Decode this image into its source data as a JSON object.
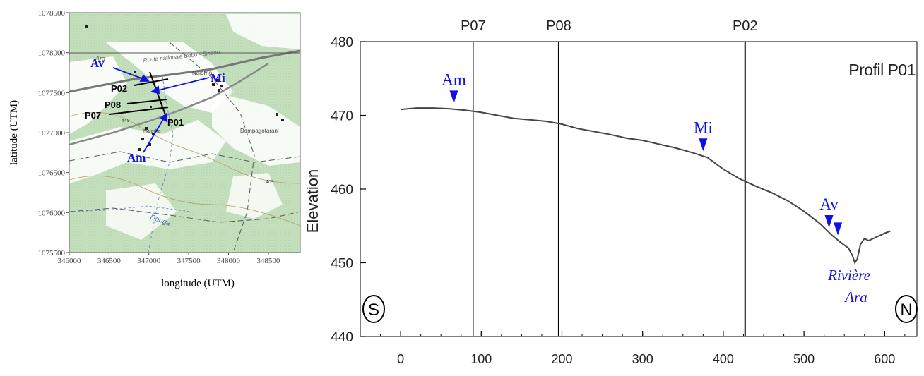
{
  "map": {
    "x_ticks": [
      346000,
      346500,
      347000,
      347500,
      348000,
      348500
    ],
    "y_ticks": [
      1075500,
      1076000,
      1076500,
      1077000,
      1077500,
      1078000,
      1078500
    ],
    "xlabel": "longitude (UTM)",
    "ylabel": "latitude (UTM)",
    "profile_labels": [
      "P02",
      "P08",
      "P07",
      "P01"
    ],
    "point_labels": [
      "Av",
      "Mi",
      "Am"
    ],
    "place_labels": [
      "Ara",
      "Route nationale Bobo - Sindou",
      "Nalorho",
      "Nalorho",
      "Dompagotarani",
      "Donga",
      "449",
      "409"
    ],
    "colors": {
      "forest": "#c9e3c2",
      "accent": "#1010e0"
    }
  },
  "chart_data": {
    "type": "line",
    "title": "Profil P01",
    "ylabel": "Elevation",
    "xlabel": "",
    "xlim": [
      -50,
      640
    ],
    "ylim": [
      440,
      480
    ],
    "x_ticks": [
      0,
      100,
      200,
      300,
      400,
      500,
      600
    ],
    "y_ticks": [
      440,
      450,
      460,
      470,
      480
    ],
    "grid": false,
    "series": [
      {
        "x": [
          0,
          20,
          40,
          60,
          80,
          100,
          120,
          140,
          160,
          180,
          200,
          220,
          240,
          260,
          280,
          300,
          320,
          340,
          360,
          380,
          400,
          420,
          440,
          460,
          480,
          500,
          520,
          535,
          545,
          550,
          555,
          560,
          563,
          566,
          570,
          575,
          580,
          590,
          600,
          607
        ],
        "y": [
          470.8,
          471.0,
          471.0,
          470.9,
          470.7,
          470.4,
          470.0,
          469.6,
          469.4,
          469.2,
          468.8,
          468.2,
          467.8,
          467.4,
          466.9,
          466.6,
          466.1,
          465.6,
          465.0,
          464.3,
          462.7,
          461.4,
          460.4,
          459.5,
          458.4,
          457.0,
          455.3,
          453.7,
          452.8,
          452.4,
          452.0,
          451.0,
          450.0,
          450.5,
          452.5,
          453.3,
          453.0,
          453.5,
          454.0,
          454.3
        ]
      }
    ],
    "vertical_lines": [
      {
        "label": "P07",
        "x": 90
      },
      {
        "label": "P08",
        "x": 196
      },
      {
        "label": "P02",
        "x": 427
      }
    ],
    "markers": [
      {
        "label": "Am",
        "x": 66,
        "y": 472.5
      },
      {
        "label": "Mi",
        "x": 375,
        "y": 466.0
      },
      {
        "label": "Av",
        "x": 531,
        "y": 455.6
      },
      {
        "label": "",
        "x": 542,
        "y": 454.6
      }
    ],
    "annotations": {
      "river_line1": "Rivière",
      "river_line2": "Ara",
      "south": "S",
      "north": "N"
    },
    "colors": {
      "line": "#444444",
      "marker": "#1010e0"
    }
  }
}
